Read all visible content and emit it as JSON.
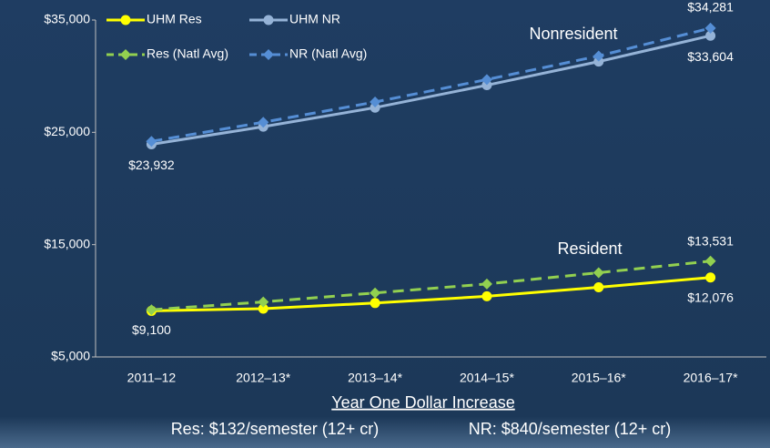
{
  "chart_data": {
    "type": "line",
    "categories": [
      "2011–12",
      "2012–13*",
      "2013–14*",
      "2014–15*",
      "2015–16*",
      "2016–17*"
    ],
    "series": [
      {
        "name": "UHM Res",
        "color": "#ffff00",
        "dashed": false,
        "marker": "circle",
        "values": [
          9100,
          9300,
          9800,
          10400,
          11200,
          12076
        ],
        "value_labels": [
          "$9,100",
          null,
          null,
          null,
          null,
          "$12,076"
        ]
      },
      {
        "name": "UHM NR",
        "color": "#95b3d7",
        "dashed": false,
        "marker": "circle",
        "values": [
          23932,
          25500,
          27200,
          29200,
          31300,
          33604
        ],
        "value_labels": [
          "$23,932",
          null,
          null,
          null,
          null,
          "$33,604"
        ]
      },
      {
        "name": "Res (Natl Avg)",
        "color": "#92d050",
        "dashed": true,
        "marker": "diamond",
        "values": [
          9200,
          9900,
          10700,
          11500,
          12500,
          13531
        ],
        "value_labels": [
          null,
          null,
          null,
          null,
          null,
          "$13,531"
        ]
      },
      {
        "name": "NR (Natl Avg)",
        "color": "#558ed5",
        "dashed": true,
        "marker": "diamond",
        "values": [
          24200,
          25900,
          27700,
          29700,
          31800,
          34281
        ],
        "value_labels": [
          null,
          null,
          null,
          null,
          null,
          "$34,281"
        ]
      }
    ],
    "ylim": [
      5000,
      35000
    ],
    "yticks": [
      {
        "value": 5000,
        "label": "$5,000"
      },
      {
        "value": 15000,
        "label": "$15,000"
      },
      {
        "value": 25000,
        "label": "$25,000"
      },
      {
        "value": 35000,
        "label": "$35,000"
      }
    ],
    "annotations": [
      "Nonresident",
      "Resident"
    ],
    "xlabel": "Year One Dollar Increase",
    "notes": [
      "Res: $132/semester (12+ cr)",
      "NR: $840/semester (12+ cr)"
    ]
  }
}
